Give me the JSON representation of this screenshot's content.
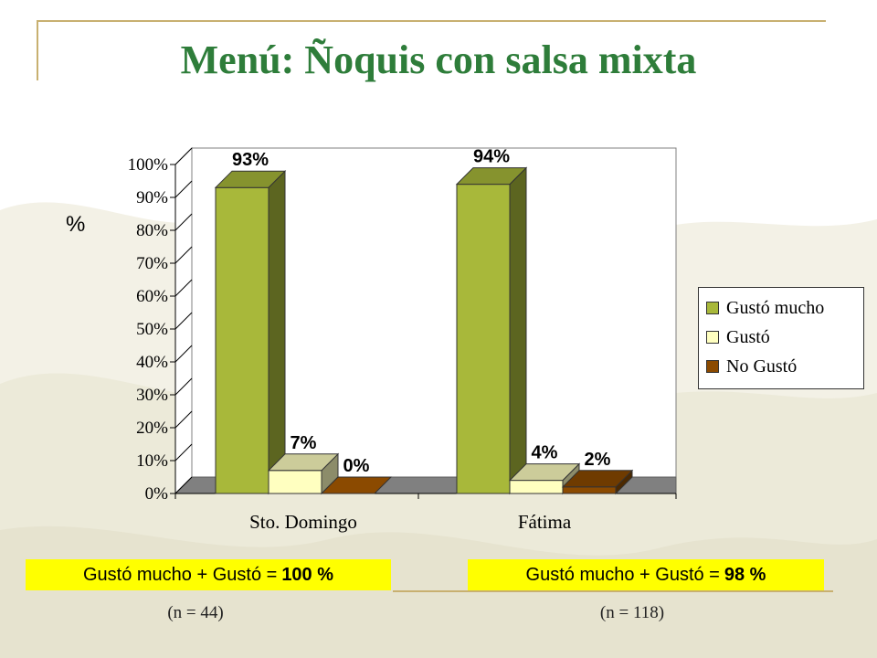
{
  "slide": {
    "title": "Menú: Ñoquis con salsa mixta",
    "y_unit_label": "%"
  },
  "legend": {
    "items": [
      {
        "label": "Gustó mucho",
        "color": "#a8b83a"
      },
      {
        "label": "Gustó",
        "color": "#ffffc0"
      },
      {
        "label": "No Gustó",
        "color": "#8b4a00"
      }
    ]
  },
  "summaries": [
    {
      "prefix": "Gustó mucho + Gustó =",
      "value": "100 %",
      "n": "(n = 44)"
    },
    {
      "prefix": "Gustó mucho + Gustó =",
      "value": "98 %",
      "n": "(n = 118)"
    }
  ],
  "chart_data": {
    "type": "bar",
    "categories": [
      "Sto. Domingo",
      "Fátima"
    ],
    "series": [
      {
        "name": "Gustó mucho",
        "values": [
          93,
          94
        ],
        "labels": [
          "93%",
          "94%"
        ],
        "color": "#a8b83a"
      },
      {
        "name": "Gustó",
        "values": [
          7,
          4
        ],
        "labels": [
          "7%",
          "4%"
        ],
        "color": "#ffffc0"
      },
      {
        "name": "No Gustó",
        "values": [
          0,
          2
        ],
        "labels": [
          "0%",
          "2%"
        ],
        "color": "#8b4a00"
      }
    ],
    "ylim": [
      0,
      100
    ],
    "yticks": [
      "0%",
      "10%",
      "20%",
      "30%",
      "40%",
      "50%",
      "60%",
      "70%",
      "80%",
      "90%",
      "100%"
    ],
    "ylabel": "%",
    "three_d": true,
    "grid": false,
    "legend_position": "right"
  }
}
